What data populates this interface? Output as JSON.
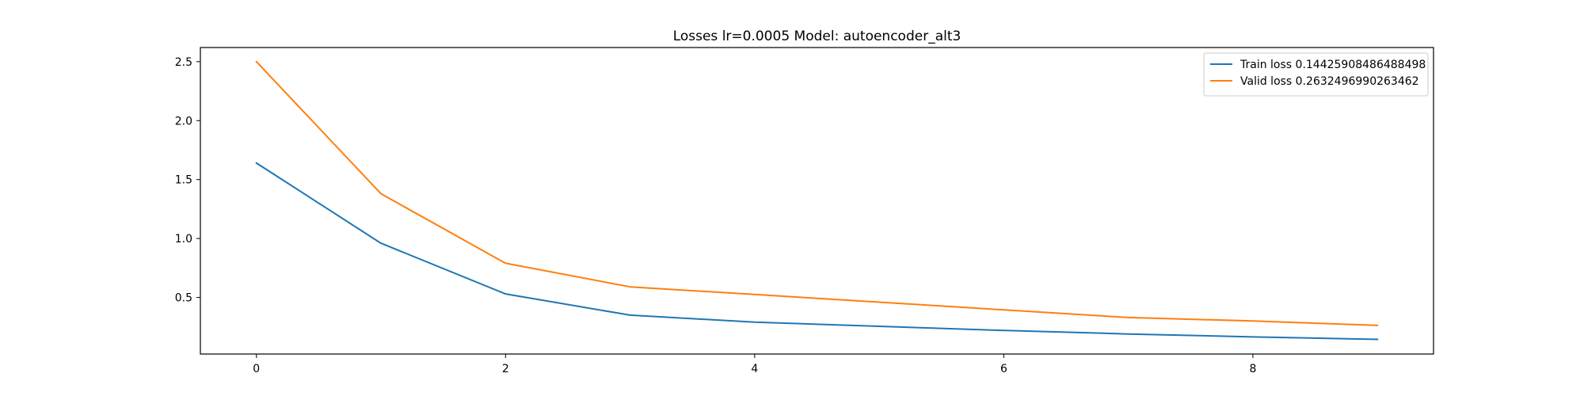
{
  "chart_data": {
    "type": "line",
    "title": "Losses lr=0.0005 Model: autoencoder_alt3",
    "xlabel": "",
    "ylabel": "",
    "x": [
      0,
      1,
      2,
      3,
      4,
      5,
      6,
      7,
      8,
      9
    ],
    "xlim": [
      -0.45,
      9.45
    ],
    "ylim": [
      0.02,
      2.62
    ],
    "xticks": [
      0,
      2,
      4,
      6,
      8
    ],
    "xtick_labels": [
      "0",
      "2",
      "4",
      "6",
      "8"
    ],
    "yticks": [
      0.5,
      1.0,
      1.5,
      2.0,
      2.5
    ],
    "ytick_labels": [
      "0.5",
      "1.0",
      "1.5",
      "2.0",
      "2.5"
    ],
    "grid": false,
    "legend_position": "top-right",
    "series": [
      {
        "name": "Train loss 0.14425908486488498",
        "color": "#1f77b4",
        "values": [
          1.64,
          0.96,
          0.53,
          0.35,
          0.29,
          0.255,
          0.22,
          0.19,
          0.165,
          0.144
        ]
      },
      {
        "name": "Valid loss 0.2632496990263462",
        "color": "#ff7f0e",
        "values": [
          2.5,
          1.38,
          0.79,
          0.59,
          0.525,
          0.46,
          0.395,
          0.33,
          0.3,
          0.263
        ]
      }
    ]
  }
}
